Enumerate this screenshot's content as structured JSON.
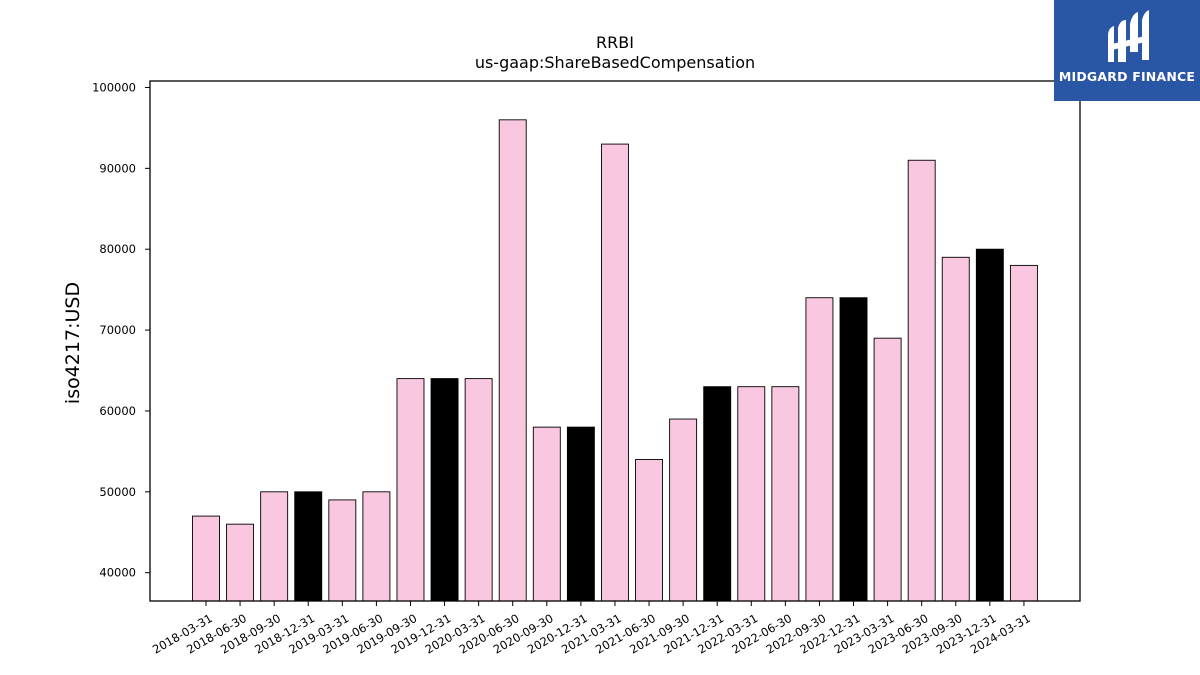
{
  "logo": {
    "text": "MIDGARD FINANCE"
  },
  "chart_data": {
    "type": "bar",
    "title": "RRBI",
    "subtitle": "us-gaap:ShareBasedCompensation",
    "xlabel": "",
    "ylabel": "iso4217:USD",
    "ylim": [
      36500,
      100800
    ],
    "yticks": [
      40000,
      50000,
      60000,
      70000,
      80000,
      90000,
      100000
    ],
    "grid": false,
    "colors": {
      "quarter": "#f9c8e0",
      "year_end": "#000000",
      "edge": "#000000"
    },
    "categories": [
      "2018-03-31",
      "2018-06-30",
      "2018-09-30",
      "2018-12-31",
      "2019-03-31",
      "2019-06-30",
      "2019-09-30",
      "2019-12-31",
      "2020-03-31",
      "2020-06-30",
      "2020-09-30",
      "2020-12-31",
      "2021-03-31",
      "2021-06-30",
      "2021-09-30",
      "2021-12-31",
      "2022-03-31",
      "2022-06-30",
      "2022-09-30",
      "2022-12-31",
      "2023-03-31",
      "2023-06-30",
      "2023-09-30",
      "2023-12-31",
      "2024-03-31"
    ],
    "values": [
      47000,
      46000,
      50000,
      50000,
      49000,
      50000,
      64000,
      64000,
      64000,
      96000,
      58000,
      58000,
      93000,
      54000,
      59000,
      63000,
      63000,
      63000,
      74000,
      74000,
      69000,
      91000,
      79000,
      80000,
      78000
    ],
    "highlight": [
      false,
      false,
      false,
      true,
      false,
      false,
      false,
      true,
      false,
      false,
      false,
      true,
      false,
      false,
      false,
      true,
      false,
      false,
      false,
      true,
      false,
      false,
      false,
      true,
      false
    ]
  }
}
